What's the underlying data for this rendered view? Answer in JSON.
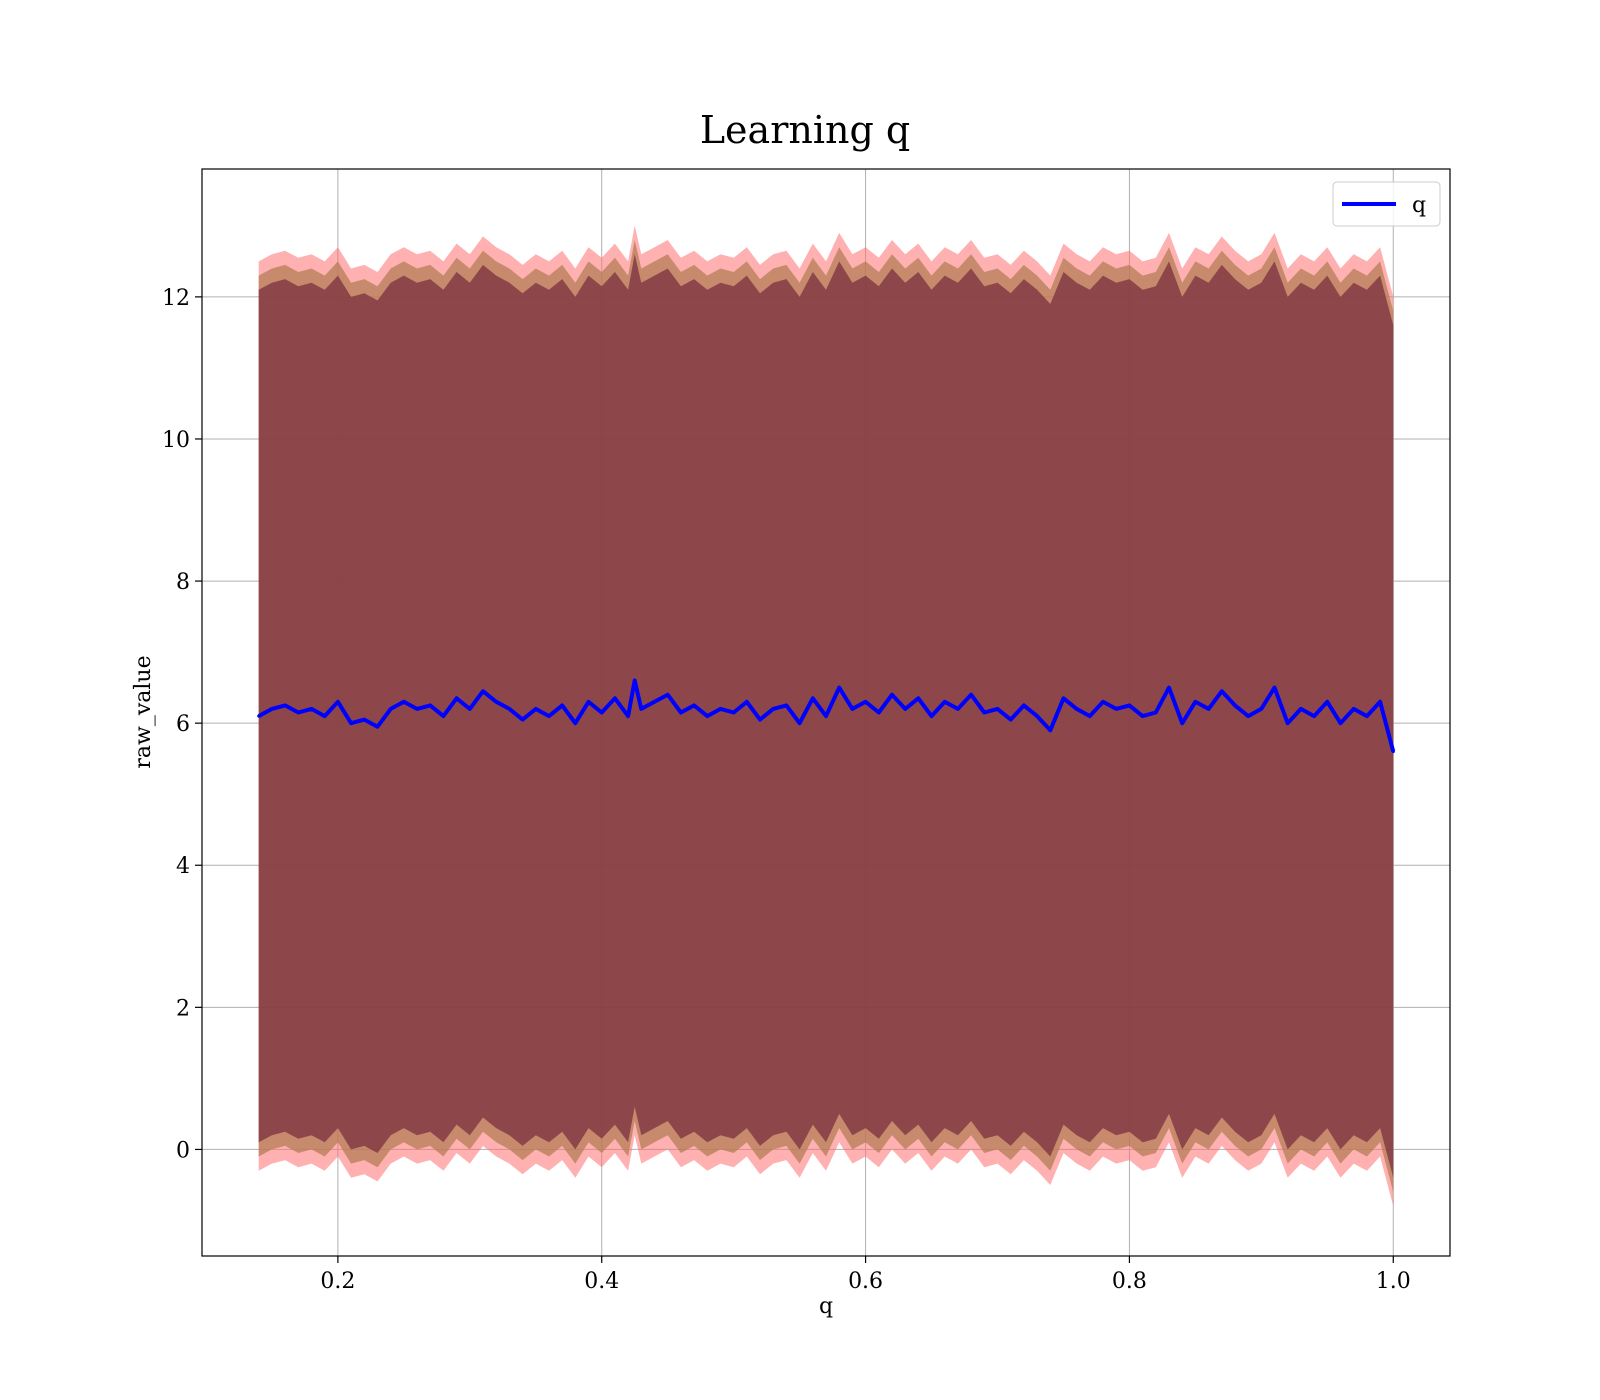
{
  "chart_data": {
    "type": "line",
    "title": "Learning q",
    "xlabel": "q",
    "ylabel": "raw_value",
    "xlim": [
      0.097,
      1.043
    ],
    "ylim": [
      -1.5,
      13.8
    ],
    "xticks": [
      0.2,
      0.4,
      0.6,
      0.8,
      1.0
    ],
    "xtick_labels": [
      "0.2",
      "0.4",
      "0.6",
      "0.8",
      "1.0"
    ],
    "yticks": [
      0,
      2,
      4,
      6,
      8,
      10,
      12
    ],
    "ytick_labels": [
      "0",
      "2",
      "4",
      "6",
      "8",
      "10",
      "12"
    ],
    "grid": true,
    "legend": {
      "position": "top-right",
      "entries": [
        "q"
      ]
    },
    "colors": {
      "line": "#0000ff",
      "band_inner": "#7a3040",
      "band_mid": "#b07a50",
      "band_outer": "#ff7070"
    },
    "series": [
      {
        "name": "q",
        "x": [
          0.14,
          0.15,
          0.16,
          0.17,
          0.18,
          0.19,
          0.2,
          0.21,
          0.22,
          0.23,
          0.24,
          0.25,
          0.26,
          0.27,
          0.28,
          0.29,
          0.3,
          0.31,
          0.32,
          0.33,
          0.34,
          0.35,
          0.36,
          0.37,
          0.38,
          0.39,
          0.4,
          0.41,
          0.42,
          0.425,
          0.43,
          0.44,
          0.45,
          0.46,
          0.47,
          0.48,
          0.49,
          0.5,
          0.51,
          0.52,
          0.53,
          0.54,
          0.55,
          0.56,
          0.57,
          0.58,
          0.59,
          0.6,
          0.61,
          0.62,
          0.63,
          0.64,
          0.65,
          0.66,
          0.67,
          0.68,
          0.69,
          0.7,
          0.71,
          0.72,
          0.73,
          0.74,
          0.75,
          0.76,
          0.77,
          0.78,
          0.79,
          0.8,
          0.81,
          0.82,
          0.83,
          0.84,
          0.85,
          0.86,
          0.87,
          0.88,
          0.89,
          0.9,
          0.91,
          0.92,
          0.93,
          0.94,
          0.95,
          0.96,
          0.97,
          0.98,
          0.99,
          1.0
        ],
        "y": [
          6.1,
          6.2,
          6.25,
          6.15,
          6.2,
          6.1,
          6.3,
          6.0,
          6.05,
          5.95,
          6.2,
          6.3,
          6.2,
          6.25,
          6.1,
          6.35,
          6.2,
          6.45,
          6.3,
          6.2,
          6.05,
          6.2,
          6.1,
          6.25,
          6.0,
          6.3,
          6.15,
          6.35,
          6.1,
          6.6,
          6.2,
          6.3,
          6.4,
          6.15,
          6.25,
          6.1,
          6.2,
          6.15,
          6.3,
          6.05,
          6.2,
          6.25,
          6.0,
          6.35,
          6.1,
          6.5,
          6.2,
          6.3,
          6.15,
          6.4,
          6.2,
          6.35,
          6.1,
          6.3,
          6.2,
          6.4,
          6.15,
          6.2,
          6.05,
          6.25,
          6.1,
          5.9,
          6.35,
          6.2,
          6.1,
          6.3,
          6.2,
          6.25,
          6.1,
          6.15,
          6.5,
          6.0,
          6.3,
          6.2,
          6.45,
          6.25,
          6.1,
          6.2,
          6.5,
          6.0,
          6.2,
          6.1,
          6.3,
          6.0,
          6.2,
          6.1,
          6.3,
          5.6
        ]
      }
    ],
    "band": {
      "inner_offset": 6.0,
      "mid_offset": 6.2,
      "outer_offset": 6.4
    }
  }
}
